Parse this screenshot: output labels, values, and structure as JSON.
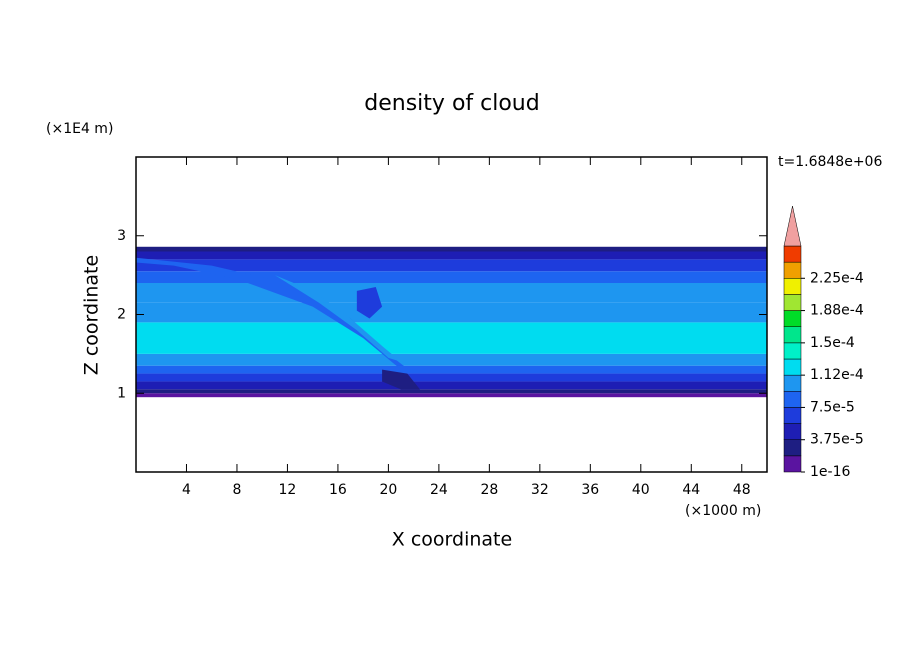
{
  "chart_data": {
    "type": "contour",
    "title": "density of cloud",
    "x_label": "X coordinate",
    "y_label": "Z coordinate",
    "x_unit": "(×1000 m)",
    "y_unit": "(×1E4 m)",
    "annotation": "t=1.6848e+06",
    "xlim": [
      0,
      50
    ],
    "ylim": [
      0,
      4
    ],
    "xticks": [
      4,
      8,
      12,
      16,
      20,
      24,
      28,
      32,
      36,
      40,
      44,
      48
    ],
    "yticks": [
      1,
      2,
      3
    ],
    "clim": [
      1e-16,
      0.0002625
    ],
    "colors": [
      "#5a14a0",
      "#1e1e82",
      "#1e1eb4",
      "#1e3cdc",
      "#1e64f0",
      "#1e96f0",
      "#00dcf0",
      "#00f0c8",
      "#00e68c",
      "#00dc28",
      "#a0e632",
      "#f0f000",
      "#f0a000",
      "#f03c00"
    ],
    "extend_color": "#f0a0a0",
    "cticks": [
      {
        "value": 1e-16,
        "label": "1e-16"
      },
      {
        "value": 3.75e-05,
        "label": "3.75e-5"
      },
      {
        "value": 7.5e-05,
        "label": "7.5e-5"
      },
      {
        "value": 0.0001125,
        "label": "1.12e-4"
      },
      {
        "value": 0.00015,
        "label": "1.5e-4"
      },
      {
        "value": 0.0001875,
        "label": "1.88e-4"
      },
      {
        "value": 0.000225,
        "label": "2.25e-4"
      }
    ],
    "bands": [
      {
        "z0": 0.95,
        "z1": 1.0,
        "value": 1e-05
      },
      {
        "z0": 1.0,
        "z1": 1.05,
        "value": 2.5e-05
      },
      {
        "z0": 1.05,
        "z1": 1.15,
        "value": 4.5e-05
      },
      {
        "z0": 1.15,
        "z1": 1.25,
        "value": 6.5e-05
      },
      {
        "z0": 1.25,
        "z1": 1.35,
        "value": 8.5e-05
      },
      {
        "z0": 1.35,
        "z1": 1.5,
        "value": 0.000105
      },
      {
        "z0": 1.5,
        "z1": 1.9,
        "value": 0.00012
      },
      {
        "z0": 1.9,
        "z1": 2.15,
        "value": 0.00011
      },
      {
        "z0": 2.15,
        "z1": 2.4,
        "value": 0.0001
      },
      {
        "z0": 2.4,
        "z1": 2.55,
        "value": 8.5e-05
      },
      {
        "z0": 2.55,
        "z1": 2.7,
        "value": 6.5e-05
      },
      {
        "z0": 2.7,
        "z1": 2.8,
        "value": 4.5e-05
      },
      {
        "z0": 2.8,
        "z1": 2.86,
        "value": 2.5e-05
      }
    ],
    "features": [
      {
        "x": [
          0,
          6,
          12,
          17,
          20,
          22,
          21,
          18,
          14,
          8,
          3,
          0
        ],
        "z": [
          2.72,
          2.62,
          2.4,
          1.95,
          1.5,
          1.25,
          1.3,
          1.7,
          2.1,
          2.45,
          2.62,
          2.66
        ],
        "value": 8e-05
      },
      {
        "x": [
          11,
          14,
          17,
          19.5,
          21,
          20,
          17.5,
          14.5,
          12
        ],
        "z": [
          2.5,
          2.3,
          1.95,
          1.6,
          1.4,
          1.45,
          1.8,
          2.15,
          2.4
        ],
        "value": 0.0001
      },
      {
        "x": [
          17.5,
          19,
          19.5,
          18.5,
          17.5
        ],
        "z": [
          2.3,
          2.35,
          2.1,
          1.95,
          2.05
        ],
        "value": 7e-05
      },
      {
        "x": [
          19.5,
          21.5,
          22.5,
          21,
          19.5
        ],
        "z": [
          1.3,
          1.25,
          1.05,
          1.05,
          1.15
        ],
        "value": 3e-05
      }
    ]
  }
}
